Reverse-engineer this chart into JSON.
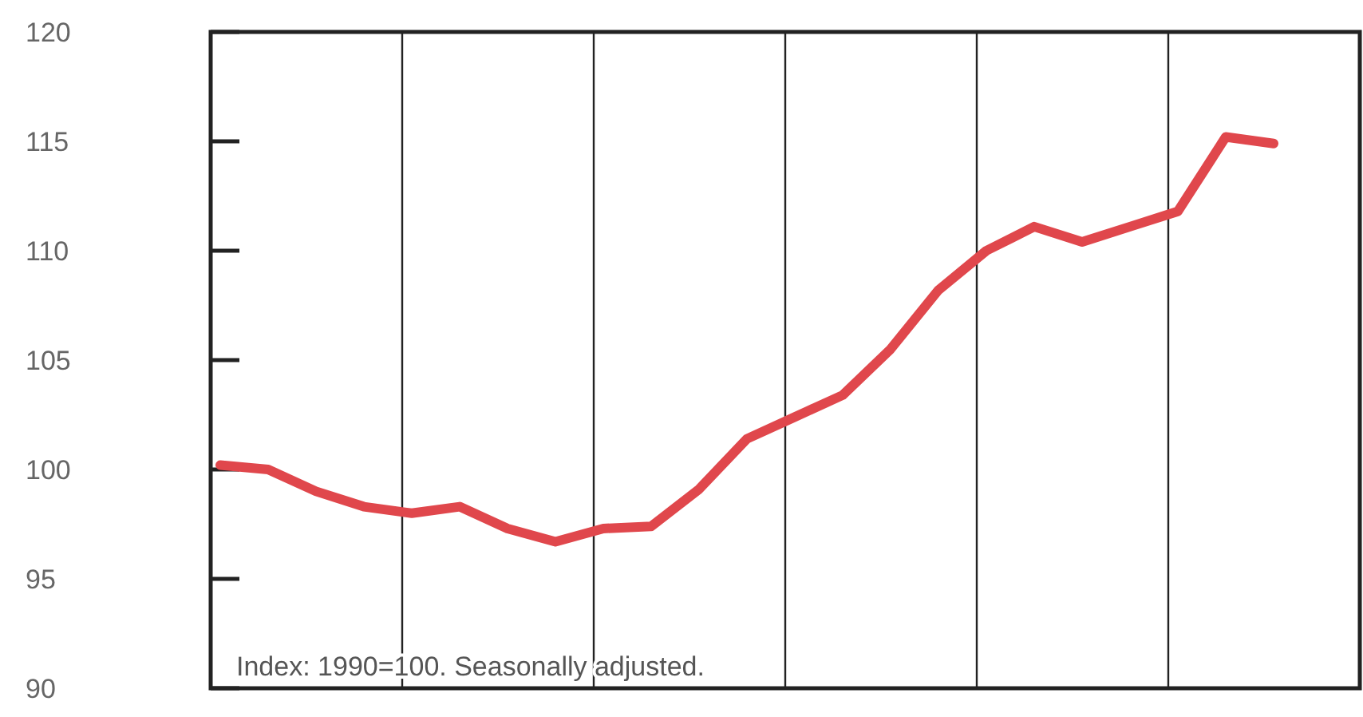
{
  "chart_data": {
    "type": "line",
    "categories": [
      null,
      null,
      null,
      null,
      null,
      null,
      null,
      null,
      null,
      null,
      null,
      null,
      null,
      null,
      null,
      null,
      null,
      null,
      null,
      null,
      null,
      null,
      null
    ],
    "series": [
      {
        "color": "#e0474c",
        "values": [
          100.2,
          100.0,
          99.0,
          98.3,
          98.0,
          98.3,
          97.3,
          96.7,
          97.3,
          97.4,
          99.1,
          101.4,
          102.4,
          103.4,
          105.5,
          108.2,
          110.0,
          111.1,
          110.4,
          111.1,
          111.8,
          115.2,
          114.9
        ]
      }
    ],
    "ylim": [
      90,
      120
    ],
    "yticks": [
      90,
      95,
      100,
      105,
      110,
      115,
      120
    ],
    "grid": "x",
    "tick_labels": "y",
    "marker": "none",
    "line_style": "solid",
    "annotations": [
      "Index: 1990=100.  Seasonally adjusted."
    ]
  }
}
